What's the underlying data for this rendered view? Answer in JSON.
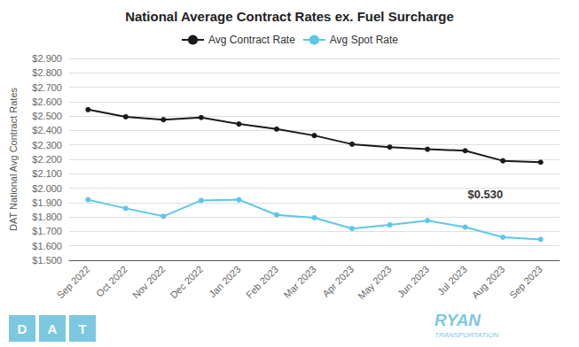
{
  "chart_data": {
    "type": "line",
    "title": "National Average Contract Rates ex. Fuel Surcharge",
    "ylabel": "DAT National Avg Contract Rates",
    "categories": [
      "Sep 2022",
      "Oct 2022",
      "Nov 2022",
      "Dec 2022",
      "Jan 2023",
      "Feb 2023",
      "Mar 2023",
      "Apr 2023",
      "May 2023",
      "Jun 2023",
      "Jul 2023",
      "Aug 2023",
      "Sep 2023"
    ],
    "series": [
      {
        "name": "Avg Contract Rate",
        "color": "#1a1a1a",
        "marker": "circle",
        "values": [
          2.545,
          2.495,
          2.475,
          2.49,
          2.445,
          2.41,
          2.365,
          2.305,
          2.285,
          2.27,
          2.26,
          2.19,
          2.18
        ]
      },
      {
        "name": "Avg Spot Rate",
        "color": "#5bc8e8",
        "marker": "circle",
        "values": [
          1.92,
          1.86,
          1.805,
          1.915,
          1.92,
          1.815,
          1.795,
          1.72,
          1.745,
          1.775,
          1.73,
          1.66,
          1.645
        ]
      }
    ],
    "ylim": [
      1.5,
      2.9
    ],
    "yticks": [
      {
        "value": 1.5,
        "label": "$1.500"
      },
      {
        "value": 1.6,
        "label": "$1.600"
      },
      {
        "value": 1.7,
        "label": "$1.700"
      },
      {
        "value": 1.8,
        "label": "$1.800"
      },
      {
        "value": 1.9,
        "label": "$1.900"
      },
      {
        "value": 2.0,
        "label": "$2.000"
      },
      {
        "value": 2.1,
        "label": "$2.100"
      },
      {
        "value": 2.2,
        "label": "$2.200"
      },
      {
        "value": 2.3,
        "label": "$2.300"
      },
      {
        "value": 2.4,
        "label": "$2.400"
      },
      {
        "value": 2.5,
        "label": "$2.500"
      },
      {
        "value": 2.6,
        "label": "$2.600"
      },
      {
        "value": 2.7,
        "label": "$2.700"
      },
      {
        "value": 2.8,
        "label": "$2.800"
      },
      {
        "value": 2.9,
        "label": "$2.900"
      }
    ],
    "grid": true,
    "legend": "top",
    "annotations": [
      {
        "text": "$0.530",
        "x": 10.6,
        "y": 1.96
      },
      {
        "text": "D",
        "color": "#7bc8e0"
      },
      {
        "text": "A",
        "color": "#7bc8e0"
      },
      {
        "text": "T",
        "color": "#7bc8e0"
      },
      {
        "text": "RYAN",
        "color": "#7bc8e0"
      },
      {
        "text": "TRANSPORTATION",
        "color": "#7bc8e0"
      }
    ]
  }
}
